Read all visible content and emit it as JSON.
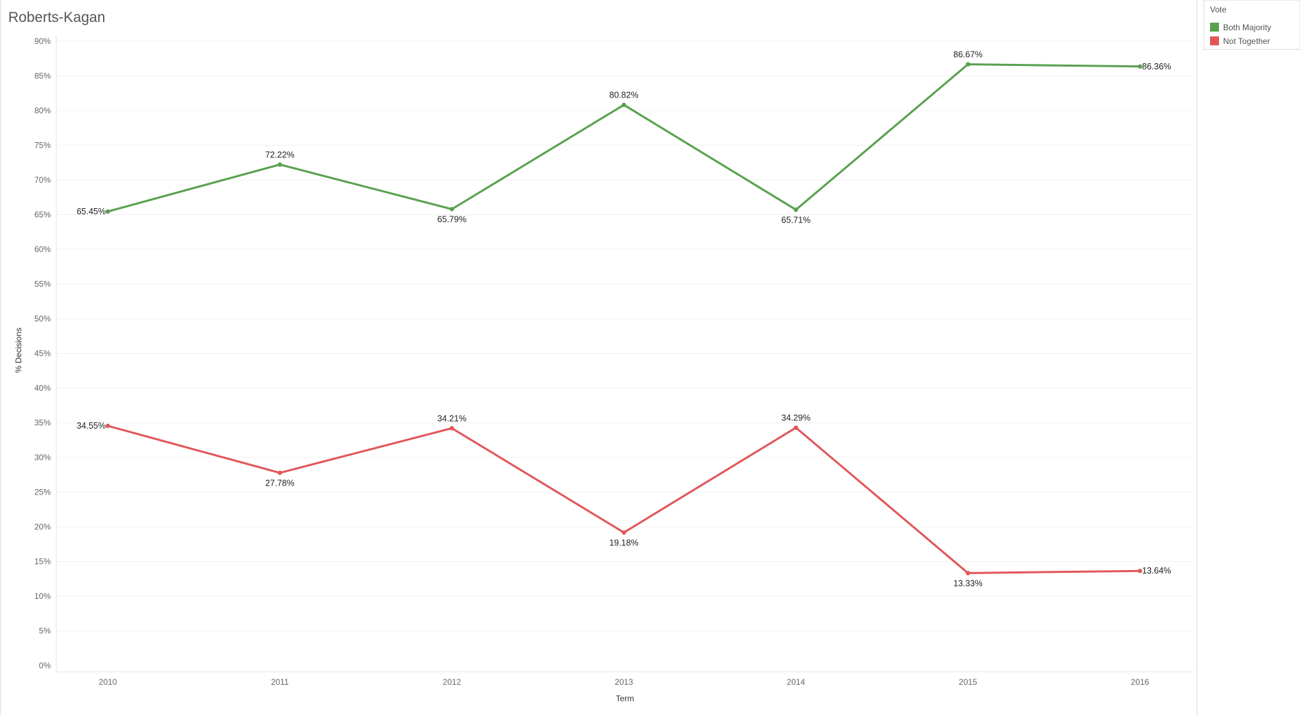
{
  "title": "Roberts-Kagan",
  "chart_data": {
    "type": "line",
    "title": "Roberts-Kagan",
    "xlabel": "Term",
    "ylabel": "% Decisions",
    "x": [
      "2010",
      "2011",
      "2012",
      "2013",
      "2014",
      "2015",
      "2016"
    ],
    "ylim": [
      0,
      90
    ],
    "yticks": [
      "0%",
      "5%",
      "10%",
      "15%",
      "20%",
      "25%",
      "30%",
      "35%",
      "40%",
      "45%",
      "50%",
      "55%",
      "60%",
      "65%",
      "70%",
      "75%",
      "80%",
      "85%",
      "90%"
    ],
    "grid": true,
    "legend_position": "top-right",
    "legend_title": "Vote",
    "series": [
      {
        "name": "Both Majority",
        "color": "#59a14f",
        "values": [
          65.45,
          72.22,
          65.79,
          80.82,
          65.71,
          86.67,
          86.36
        ],
        "labels": [
          "65.45%",
          "72.22%",
          "65.79%",
          "80.82%",
          "65.71%",
          "86.67%",
          "86.36%"
        ]
      },
      {
        "name": "Not Together",
        "color": "#e15759",
        "values": [
          34.55,
          27.78,
          34.21,
          19.18,
          34.29,
          13.33,
          13.64
        ],
        "labels": [
          "34.55%",
          "27.78%",
          "34.21%",
          "19.18%",
          "34.29%",
          "13.33%",
          "13.64%"
        ]
      }
    ]
  }
}
